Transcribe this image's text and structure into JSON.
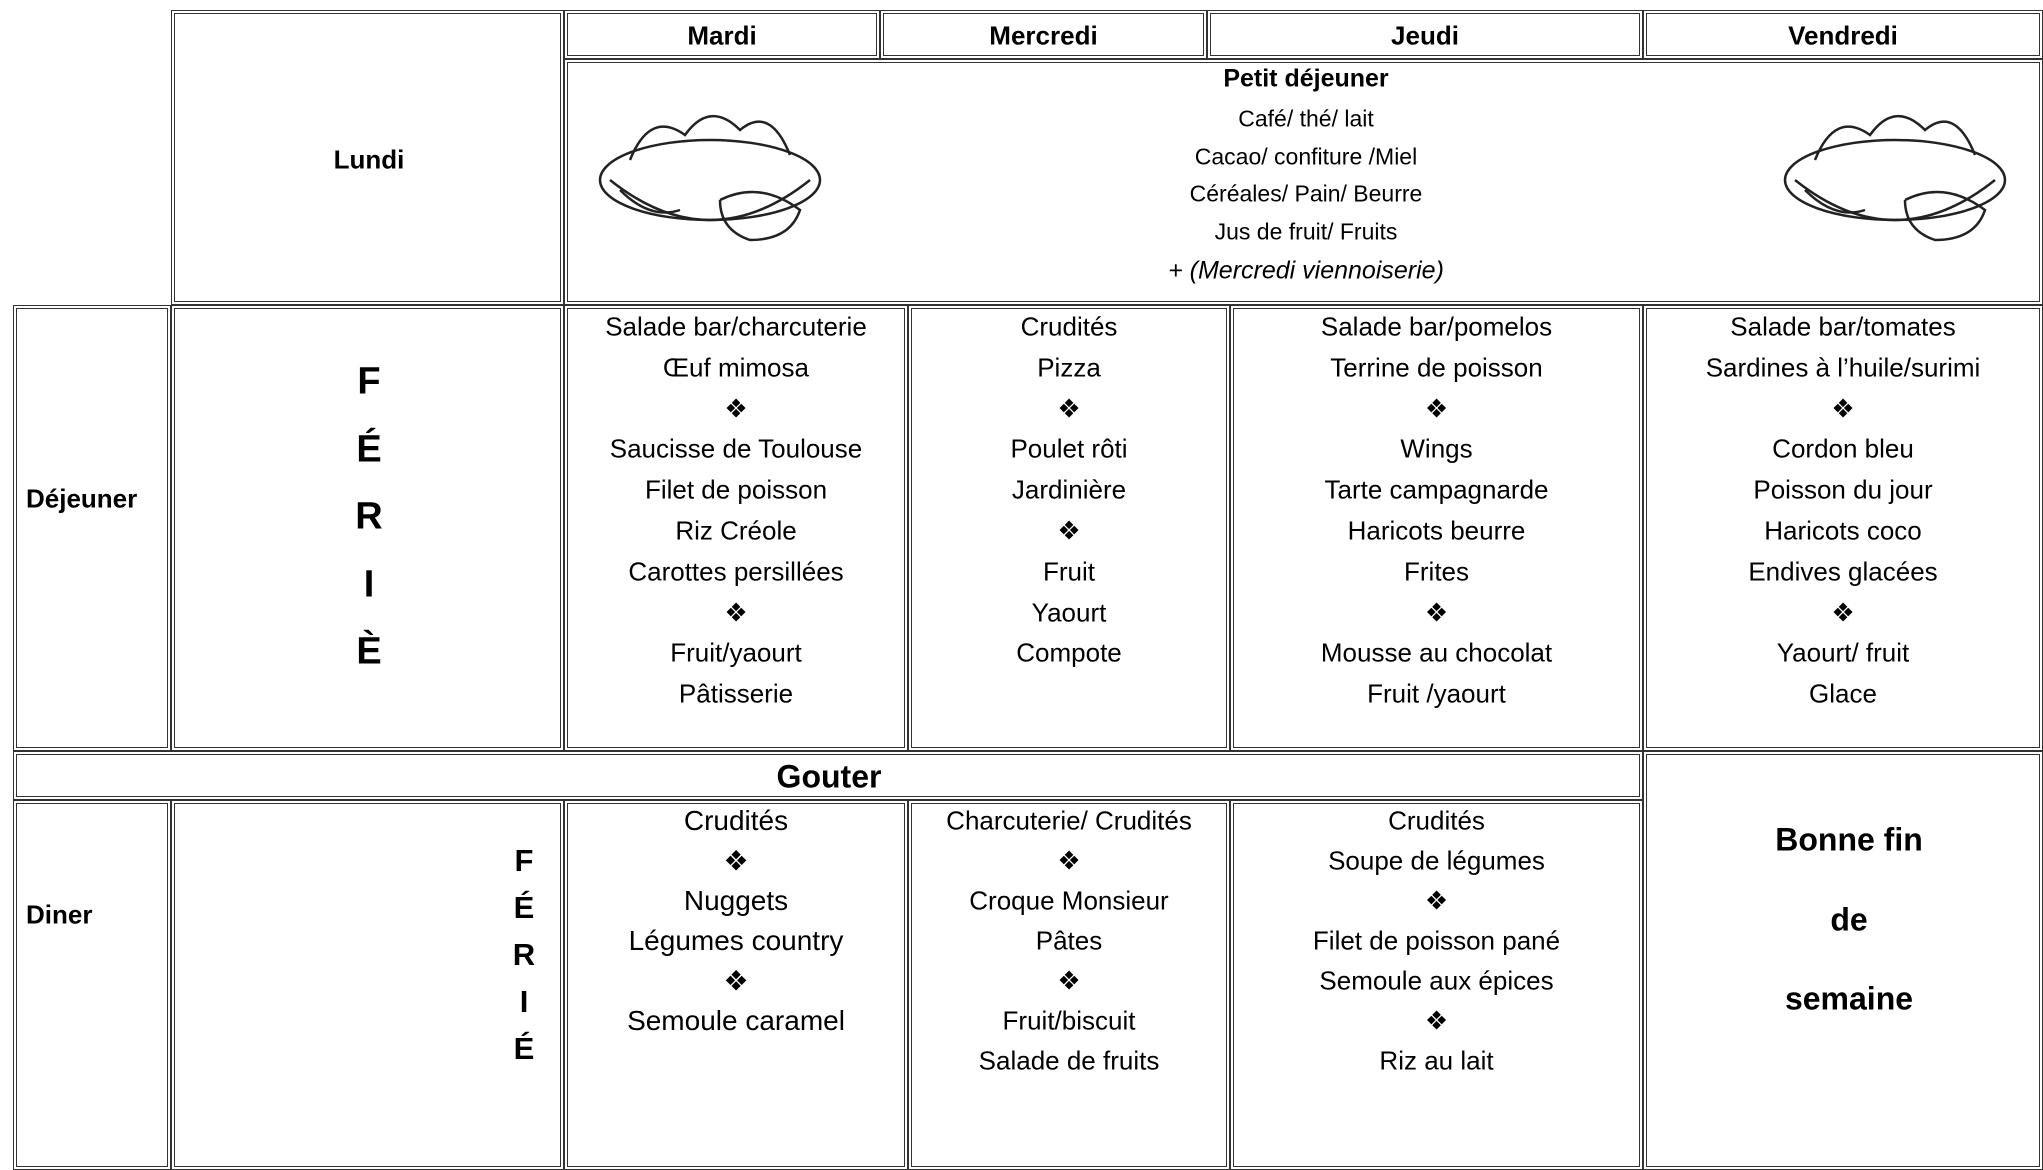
{
  "header": {
    "days": [
      "Lundi",
      "Mardi",
      "Mercredi",
      "Jeudi",
      "Vendredi"
    ]
  },
  "breakfast": {
    "title": "Petit déjeuner",
    "items": [
      "Café/ thé/ lait",
      "Cacao/ confiture /Miel",
      "Céréales/ Pain/ Beurre",
      "Jus de fruit/ Fruits"
    ],
    "note": "+ (Mercredi viennoiserie)"
  },
  "lunch": {
    "label": "Déjeuner",
    "lundi": [
      "F",
      "É",
      "R",
      "I",
      "È"
    ],
    "days": [
      [
        "Salade bar/charcuterie",
        "Œuf mimosa",
        "❖",
        "Saucisse de Toulouse",
        "Filet de poisson",
        "Riz Créole",
        "Carottes persillées",
        "❖",
        "Fruit/yaourt",
        "Pâtisserie"
      ],
      [
        "Crudités",
        "Pizza",
        "❖",
        "Poulet rôti",
        "Jardinière",
        "❖",
        "Fruit",
        "Yaourt",
        "Compote"
      ],
      [
        "Salade bar/pomelos",
        "Terrine de poisson",
        "❖",
        "Wings",
        "Tarte campagnarde",
        "Haricots beurre",
        "Frites",
        "❖",
        "Mousse au chocolat",
        "Fruit /yaourt"
      ],
      [
        "Salade bar/tomates",
        "Sardines à l’huile/surimi",
        "❖",
        "Cordon bleu",
        "Poisson du jour",
        "Haricots coco",
        "Endives glacées",
        "❖",
        "Yaourt/ fruit",
        "Glace"
      ]
    ]
  },
  "snack": {
    "label": "Gouter"
  },
  "dinner": {
    "label": "Diner",
    "lundi": [
      "F",
      "É",
      "R",
      "I",
      "É"
    ],
    "days": [
      [
        "Crudités",
        "❖",
        "Nuggets",
        "Légumes country",
        "❖",
        "Semoule caramel"
      ],
      [
        "Charcuterie/ Crudités",
        "❖",
        "Croque Monsieur",
        "Pâtes",
        "❖",
        "Fruit/biscuit",
        "Salade de fruits"
      ],
      [
        "Crudités",
        "Soupe de légumes",
        "❖",
        "Filet de poisson pané",
        "Semoule aux épices",
        "❖",
        "Riz au lait"
      ]
    ]
  },
  "closing": [
    "Bonne fin",
    "de",
    "semaine"
  ]
}
